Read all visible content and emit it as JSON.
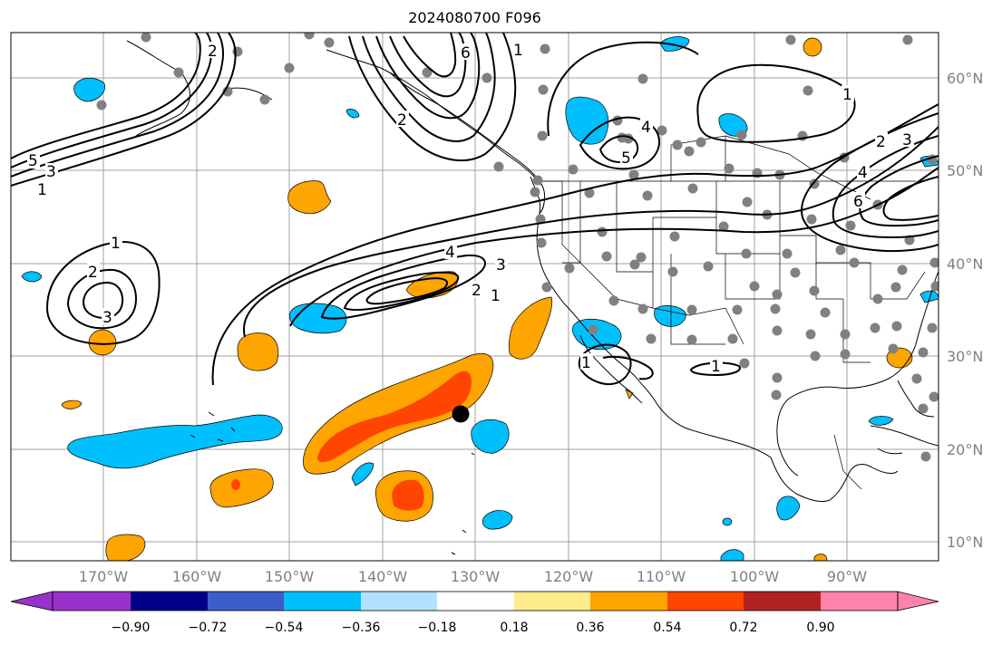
{
  "title": "2024080700 F096",
  "lat_labels": [
    "60°N",
    "50°N",
    "40°N",
    "30°N",
    "20°N",
    "10°N"
  ],
  "lon_labels": [
    "170°W",
    "160°W",
    "150°W",
    "140°W",
    "130°W",
    "120°W",
    "110°W",
    "100°W",
    "90°W"
  ],
  "contour_labels": [
    "1",
    "2",
    "3",
    "4",
    "5",
    "6"
  ],
  "colorbar": {
    "ticks": [
      "−0.90",
      "−0.72",
      "−0.54",
      "−0.36",
      "−0.18",
      "0.18",
      "0.36",
      "0.54",
      "0.72",
      "0.90"
    ],
    "colors": [
      "#9932cc",
      "#00008b",
      "#3a5fcd",
      "#00bfff",
      "#b0e2ff",
      "#ffffff",
      "#ffec8b",
      "#ffa500",
      "#ff4500",
      "#b22222",
      "#ff82ab"
    ]
  },
  "colors": {
    "grid": "#a0a0a0",
    "land_line": "#000000",
    "station": "#808080",
    "marker": "#000000"
  }
}
